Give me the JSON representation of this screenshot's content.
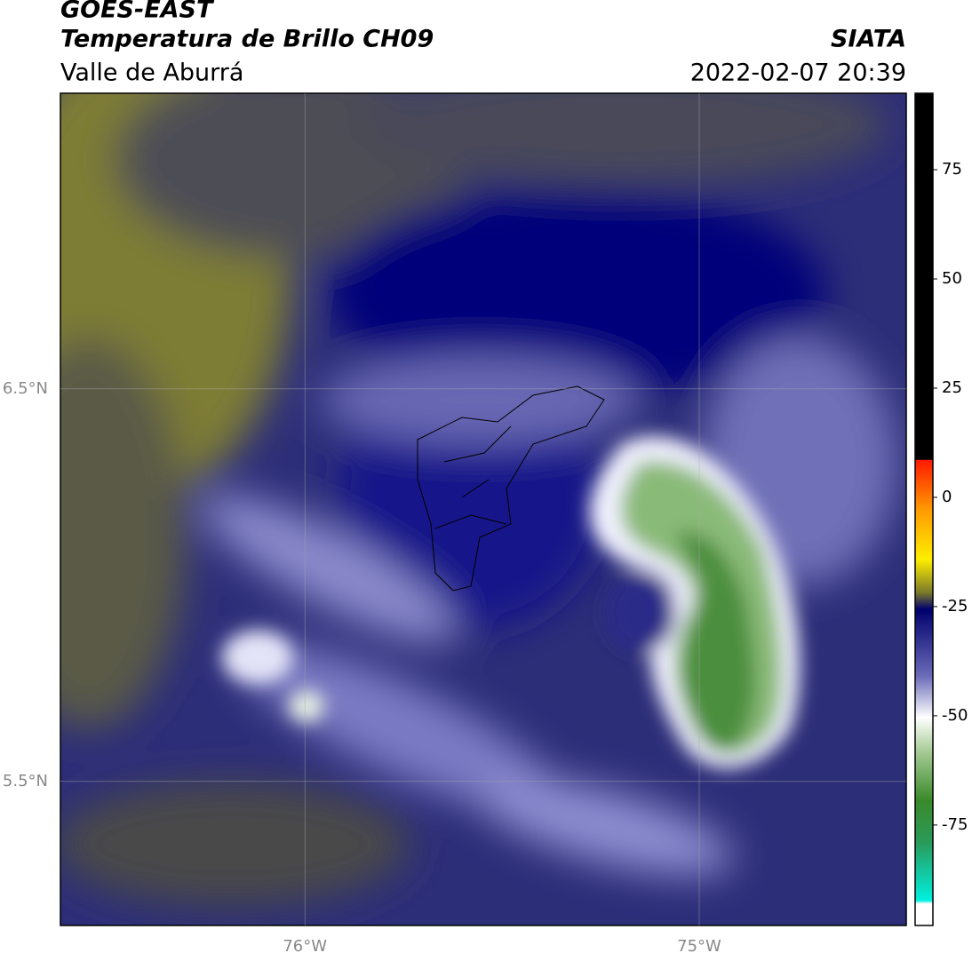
{
  "header": {
    "title": "GOES-EAST",
    "subtitle": "Temperatura de Brillo CH09",
    "region": "Valle de Aburrá",
    "source": "SIATA",
    "datetime": "2022-02-07 20:39"
  },
  "map": {
    "latlim": [
      5.133,
      7.253
    ],
    "lonlim": [
      -76.62,
      -74.475
    ],
    "lat_ticks": [
      {
        "value": 6.5,
        "label": "6.5°N"
      },
      {
        "value": 5.5,
        "label": "5.5°N"
      }
    ],
    "lon_ticks": [
      {
        "value": -76,
        "label": "76°W"
      },
      {
        "value": -75,
        "label": "75°W"
      }
    ]
  },
  "colorbar": {
    "lim": [
      -98,
      92.5
    ],
    "ticks": [
      75,
      50,
      25,
      0,
      -25,
      -50,
      -75
    ]
  }
}
